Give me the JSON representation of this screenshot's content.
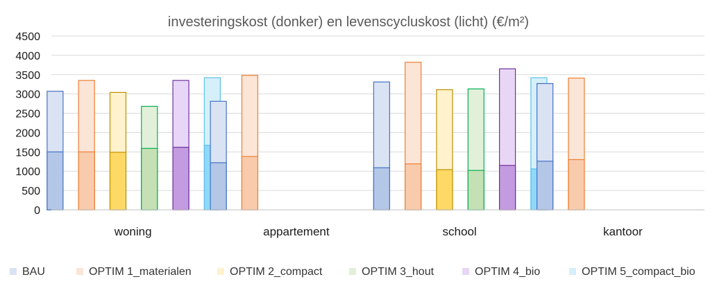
{
  "chart_data": {
    "type": "bar",
    "title": "investeringskost (donker) en levenscycluskost (licht) (€/m²)",
    "xlabel": "",
    "ylabel": "",
    "ylim": [
      0,
      4500
    ],
    "yticks": [
      0,
      500,
      1000,
      1500,
      2000,
      2500,
      3000,
      3500,
      4000,
      4500
    ],
    "grid": true,
    "legend_position": "bottom",
    "categories": [
      "woning",
      "appartement",
      "school",
      "kantoor"
    ],
    "series": [
      {
        "name": "BAU",
        "edge": "#4472C4",
        "dark": "#B4C7E7",
        "light": "#DAE3F3",
        "investering": [
          1500,
          1220,
          1090,
          1260
        ],
        "levenscyclus": [
          3070,
          2810,
          3310,
          3270
        ]
      },
      {
        "name": "OPTIM 1_materialen",
        "edge": "#ED7D31",
        "dark": "#F8CBAD",
        "light": "#FBE5D6",
        "investering": [
          1500,
          1380,
          1190,
          1300
        ],
        "levenscyclus": [
          3350,
          3480,
          3820,
          3410
        ]
      },
      {
        "name": "OPTIM 2_compact",
        "edge": "#BF9000",
        "dark": "#FFD966",
        "light": "#FFF2CC",
        "investering": [
          1490,
          null,
          1040,
          null
        ],
        "levenscyclus": [
          3040,
          null,
          3110,
          null
        ]
      },
      {
        "name": "OPTIM 3_hout",
        "edge": "#00B050",
        "dark": "#C5E0B4",
        "light": "#E2F0D9",
        "investering": [
          1590,
          null,
          1020,
          null
        ],
        "levenscyclus": [
          2680,
          null,
          3130,
          null
        ]
      },
      {
        "name": "OPTIM 4_bio",
        "edge": "#7030A0",
        "dark": "#C39BE0",
        "light": "#E7D6F5",
        "investering": [
          1620,
          null,
          1150,
          null
        ],
        "levenscyclus": [
          3350,
          null,
          3650,
          null
        ]
      },
      {
        "name": "OPTIM 5_compact_bio",
        "edge": "#5BC0EB",
        "dark": "#8FD8F8",
        "light": "#D6F0FB",
        "investering": [
          1670,
          null,
          1060,
          null
        ],
        "levenscyclus": [
          3420,
          null,
          3420,
          null
        ]
      }
    ]
  }
}
